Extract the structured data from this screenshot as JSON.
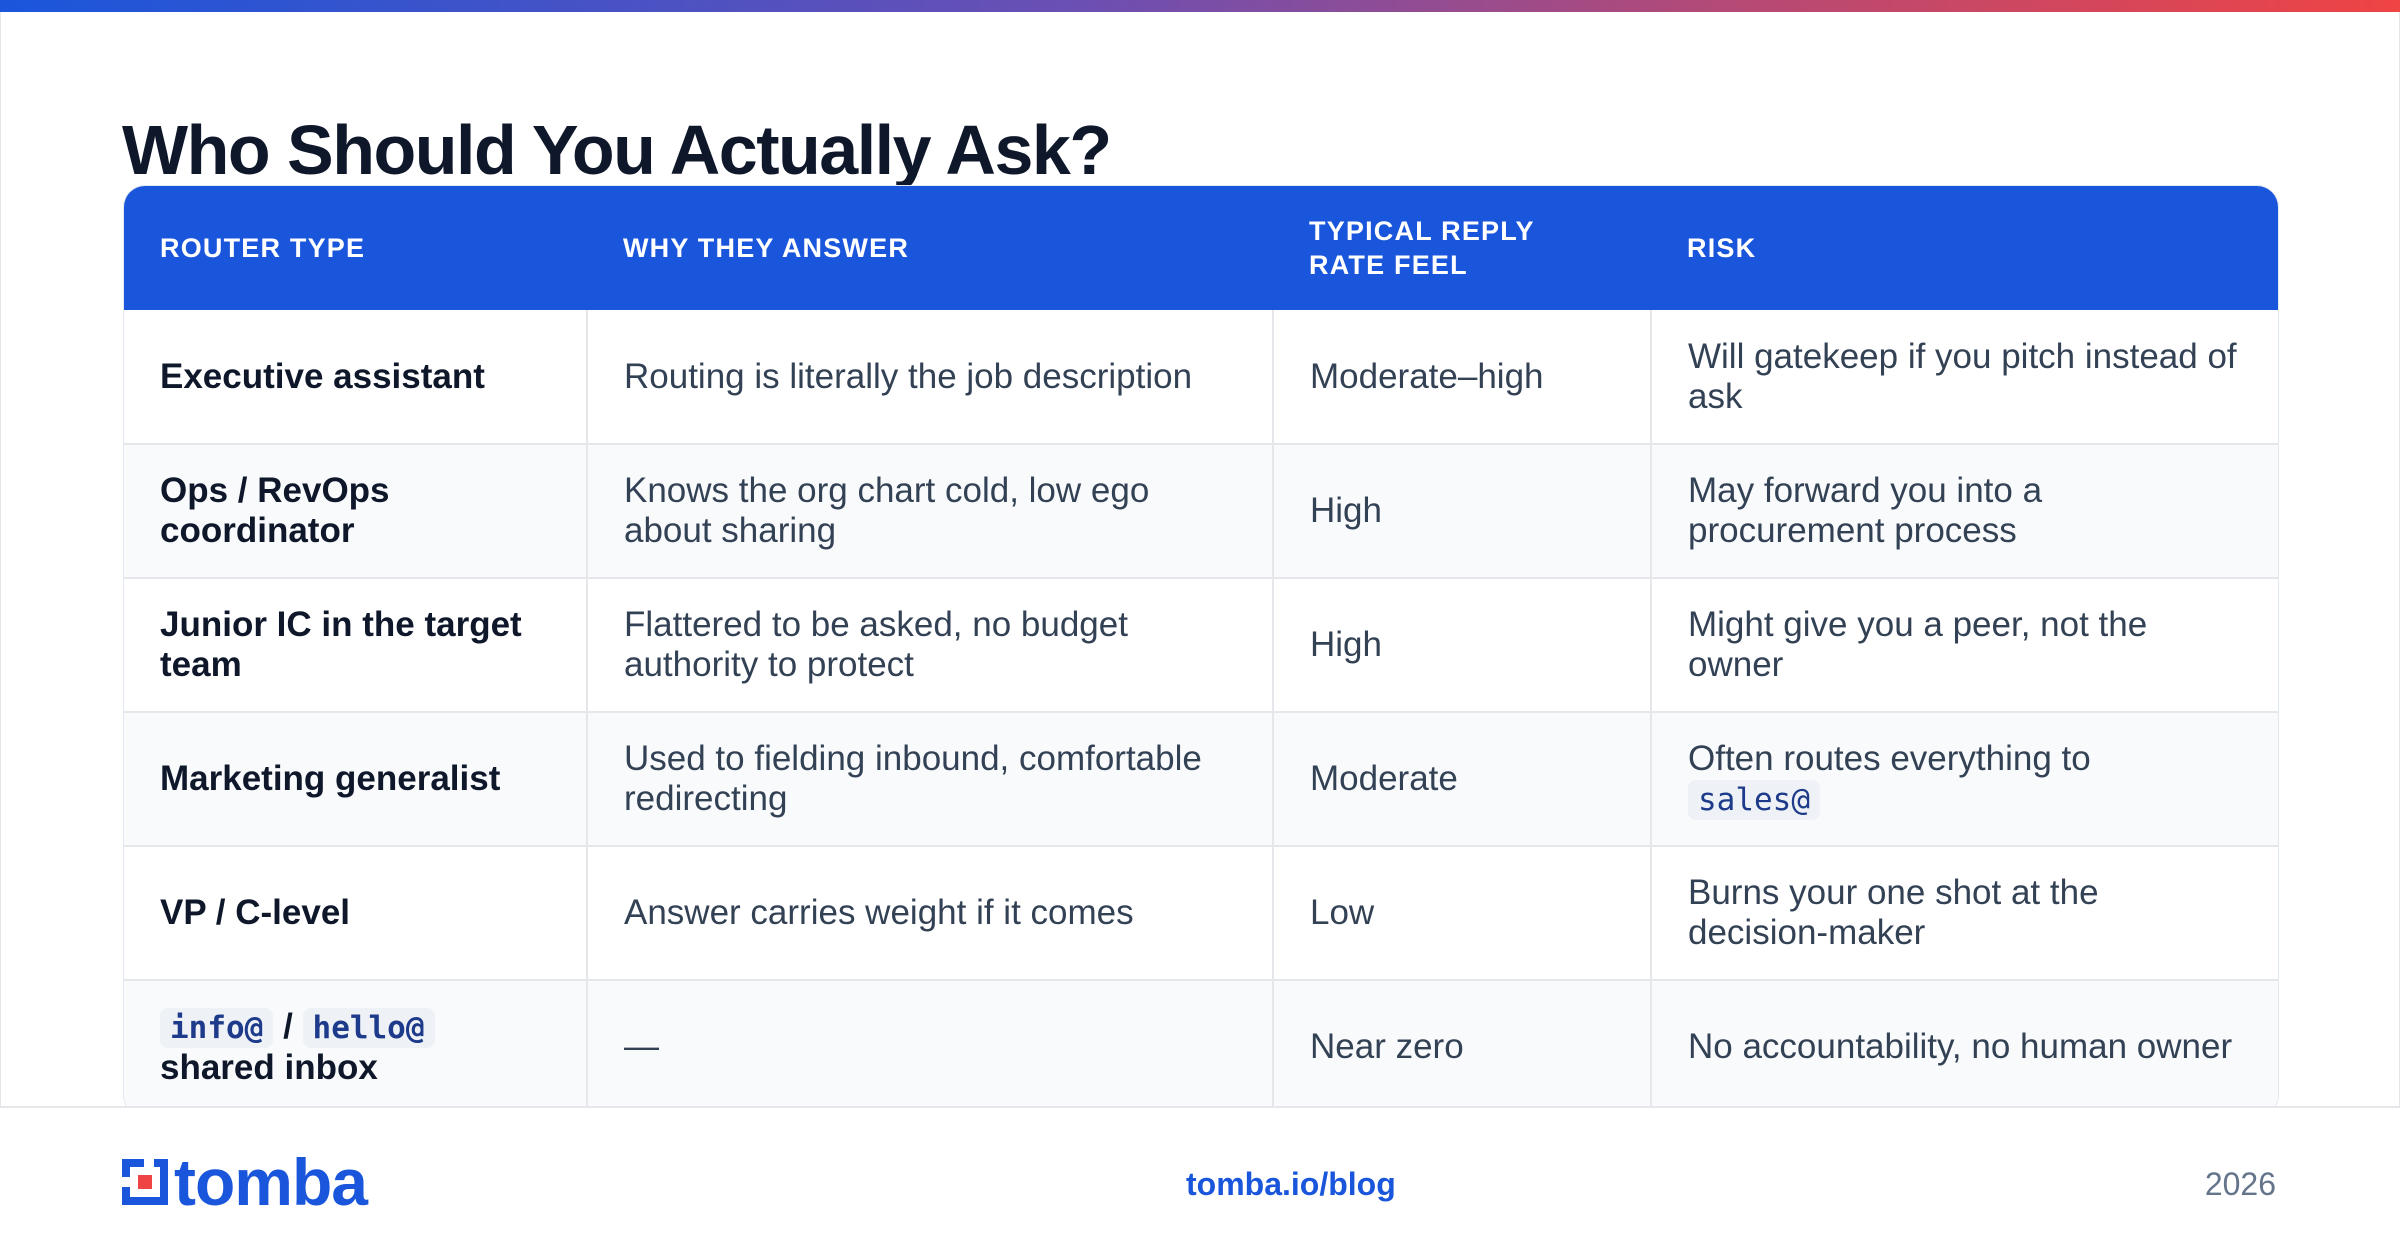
{
  "header": {
    "title": "Who Should You Actually Ask?"
  },
  "table": {
    "columns": [
      "Router type",
      "Why they answer",
      "Typical reply rate feel",
      "Risk"
    ],
    "rows": [
      {
        "router_type": "Executive assistant",
        "why": "Routing is literally the job description",
        "reply_rate": "Moderate–high",
        "risk": "Will gatekeep if you pitch instead of ask"
      },
      {
        "router_type": "Ops / RevOps coordinator",
        "why": "Knows the org chart cold, low ego about sharing",
        "reply_rate": "High",
        "risk": "May forward you into a procurement process"
      },
      {
        "router_type": "Junior IC in the target team",
        "why": "Flattered to be asked, no budget authority to protect",
        "reply_rate": "High",
        "risk": "Might give you a peer, not the owner"
      },
      {
        "router_type": "Marketing generalist",
        "why": "Used to fielding inbound, comfortable redirecting",
        "reply_rate": "Moderate",
        "risk_text": "Often routes everything to",
        "risk_code": "sales@"
      },
      {
        "router_type": "VP / C-level",
        "why": "Answer carries weight if it comes",
        "reply_rate": "Low",
        "risk": "Burns your one shot at the decision-maker"
      },
      {
        "router_type_code_1": "info@",
        "router_type_sep": "/",
        "router_type_code_2": "hello@",
        "router_type_text": "shared inbox",
        "why": "—",
        "reply_rate": "Near zero",
        "risk": "No accountability, no human owner"
      }
    ]
  },
  "footer": {
    "logo_text": "tomba",
    "logo_icon": "tomba-logo-icon",
    "link": "tomba.io/blog",
    "year": "2026"
  },
  "colors": {
    "accent": "#1a56db",
    "gradient_start": "#1a56db",
    "gradient_end": "#ef4444",
    "logo_red": "#ef4444"
  }
}
